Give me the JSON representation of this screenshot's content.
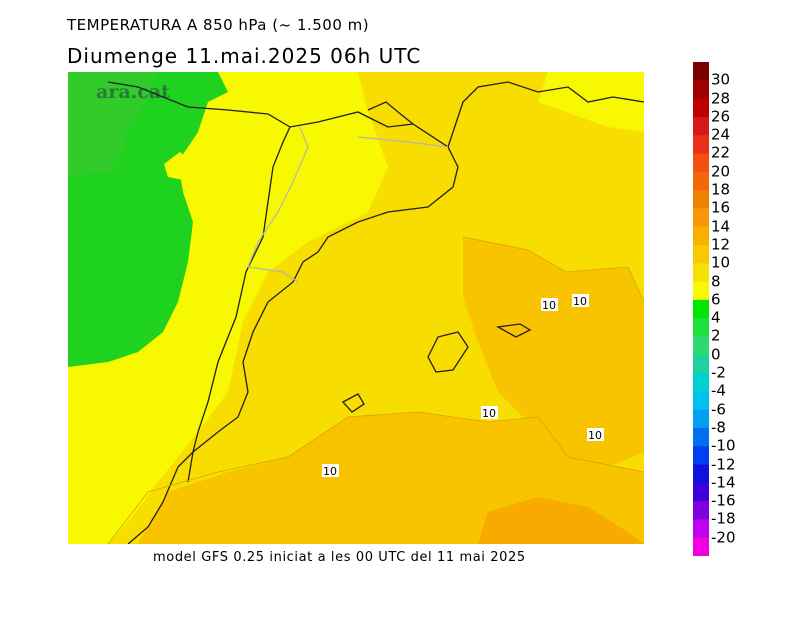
{
  "header": {
    "title": "TEMPERATURA A 850 hPa (~ 1.500 m)",
    "subtitle": "Diumenge  11.mai.2025 06h UTC"
  },
  "watermark": "ara.cat",
  "footer": "model GFS 0.25 iniciat a les 00 UTC del 11 mai 2025",
  "contour_label": "10",
  "scale": {
    "labels": [
      "30",
      "28",
      "26",
      "24",
      "22",
      "20",
      "18",
      "16",
      "14",
      "12",
      "10",
      "8",
      "6",
      "4",
      "2",
      "0",
      "-2",
      "-4",
      "-6",
      "-8",
      "-10",
      "-12",
      "-14",
      "-16",
      "-18",
      "-20"
    ],
    "colors": [
      "#7a0000",
      "#a00000",
      "#c00000",
      "#d81818",
      "#e83018",
      "#f05010",
      "#f06808",
      "#f08000",
      "#f89808",
      "#f8b000",
      "#f8c800",
      "#f8e000",
      "#f8f800",
      "#00e800",
      "#20e040",
      "#30d870",
      "#20d0a0",
      "#00d0d0",
      "#00c0f0",
      "#00a0f0",
      "#0070f0",
      "#0040f0",
      "#1010e0",
      "#4000d8",
      "#8000e0",
      "#c000f0",
      "#f000e0"
    ]
  },
  "colors": {
    "green": "#1ed21e",
    "yellow_green": "#d8f000",
    "yellow": "#f8f800",
    "gold": "#f8de00",
    "amber": "#f8c400",
    "orange": "#f8aa00"
  }
}
